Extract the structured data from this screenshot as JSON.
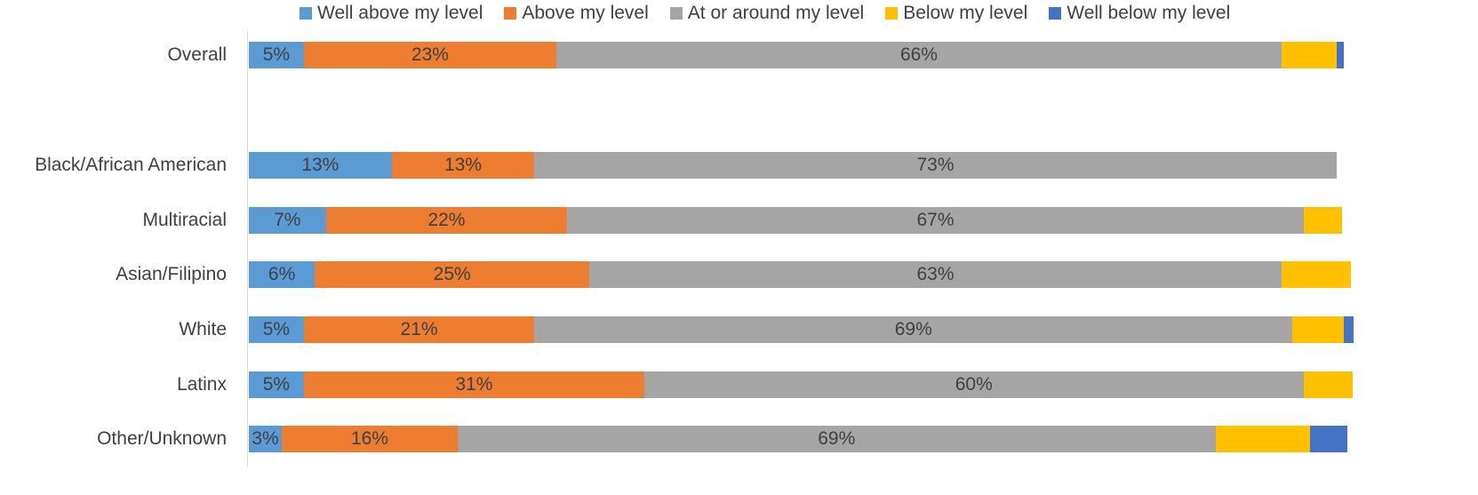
{
  "chart_data": {
    "type": "bar",
    "orientation": "horizontal",
    "stacked": true,
    "title": "",
    "xlabel": "",
    "ylabel": "",
    "xlim": [
      0,
      100
    ],
    "grid": false,
    "legend_position": "top",
    "categories": [
      "Overall",
      "Black/African American",
      "Multiracial",
      "Asian/Filipino",
      "White",
      "Latinx",
      "Other/Unknown"
    ],
    "gap_after_first": true,
    "series": [
      {
        "name": "Well above my level",
        "color": "#5b9bd5",
        "values": [
          5,
          13,
          7,
          6,
          5,
          5,
          3
        ],
        "labels": [
          "5%",
          "13%",
          "7%",
          "6%",
          "5%",
          "5%",
          "3%"
        ]
      },
      {
        "name": "Above my level",
        "color": "#ed7d31",
        "values": [
          23,
          13,
          22,
          25,
          21,
          31,
          16
        ],
        "labels": [
          "23%",
          "13%",
          "22%",
          "25%",
          "21%",
          "31%",
          "16%"
        ]
      },
      {
        "name": "At or around my level",
        "color": "#a5a5a5",
        "values": [
          66,
          73,
          67,
          63,
          69,
          60,
          69
        ],
        "labels": [
          "66%",
          "73%",
          "67%",
          "63%",
          "69%",
          "60%",
          "69%"
        ]
      },
      {
        "name": "Below my level",
        "color": "#ffc000",
        "values": [
          5,
          0,
          3.5,
          6.3,
          4.7,
          4.5,
          8.6
        ],
        "labels": [
          "",
          "",
          "",
          "",
          "",
          "",
          ""
        ]
      },
      {
        "name": "Well below my level",
        "color": "#4472c4",
        "values": [
          0.7,
          0,
          0,
          0,
          0.9,
          0,
          3.4
        ],
        "labels": [
          "",
          "",
          "",
          "",
          "",
          "",
          ""
        ]
      }
    ]
  }
}
